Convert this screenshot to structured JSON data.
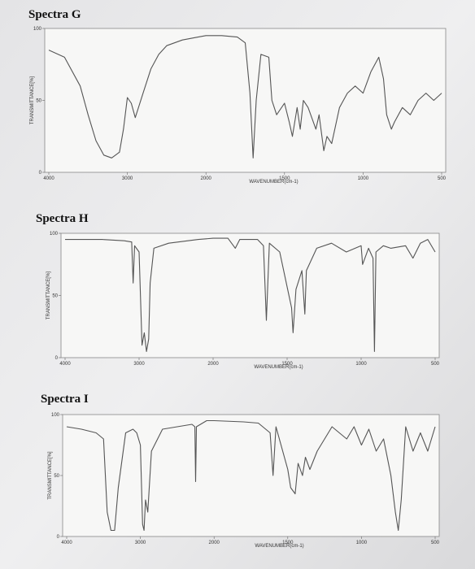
{
  "chart_data": [
    {
      "type": "line",
      "title": "Spectra G",
      "xlabel": "WAVENUMBER(cm-1)",
      "ylabel": "TRANSMITTANCE[%]",
      "xlim": [
        4000,
        500
      ],
      "xticks": [
        4000,
        3000,
        2000,
        1500,
        1000,
        500
      ],
      "ylim": [
        0,
        100
      ],
      "yticks": [
        0,
        50,
        100
      ],
      "series": [
        {
          "name": "Spectra G",
          "color": "#555555",
          "x": [
            4000,
            3800,
            3600,
            3500,
            3400,
            3300,
            3200,
            3100,
            3050,
            3000,
            2950,
            2900,
            2800,
            2700,
            2600,
            2500,
            2300,
            2100,
            2000,
            1900,
            1800,
            1750,
            1720,
            1700,
            1680,
            1650,
            1600,
            1580,
            1550,
            1500,
            1470,
            1450,
            1420,
            1400,
            1380,
            1350,
            1300,
            1280,
            1250,
            1230,
            1200,
            1150,
            1100,
            1050,
            1000,
            950,
            900,
            870,
            850,
            820,
            800,
            750,
            700,
            650,
            600,
            550,
            500
          ],
          "values": [
            85,
            80,
            60,
            40,
            22,
            12,
            10,
            14,
            30,
            52,
            48,
            38,
            55,
            72,
            82,
            88,
            92,
            94,
            95,
            95,
            94,
            90,
            55,
            10,
            50,
            82,
            80,
            50,
            40,
            48,
            35,
            25,
            45,
            30,
            50,
            45,
            30,
            40,
            15,
            25,
            20,
            45,
            55,
            60,
            55,
            70,
            80,
            65,
            40,
            30,
            35,
            45,
            40,
            50,
            55,
            50,
            55
          ]
        }
      ]
    },
    {
      "type": "line",
      "title": "Spectra H",
      "xlabel": "WAVENUMBER(cm-1)",
      "ylabel": "TRANSMITTANCE[%]",
      "xlim": [
        4000,
        500
      ],
      "xticks": [
        4000,
        3000,
        2000,
        1500,
        1000,
        500
      ],
      "ylim": [
        0,
        100
      ],
      "yticks": [
        0,
        50,
        100
      ],
      "series": [
        {
          "name": "Spectra H",
          "color": "#555555",
          "x": [
            4000,
            3500,
            3200,
            3100,
            3080,
            3060,
            3000,
            2960,
            2930,
            2900,
            2870,
            2850,
            2800,
            2600,
            2200,
            2000,
            1900,
            1850,
            1820,
            1700,
            1660,
            1640,
            1620,
            1550,
            1470,
            1460,
            1440,
            1400,
            1380,
            1370,
            1300,
            1200,
            1100,
            1000,
            990,
            950,
            920,
            910,
            900,
            850,
            800,
            700,
            650,
            600,
            550,
            500
          ],
          "values": [
            95,
            95,
            94,
            93,
            60,
            90,
            85,
            10,
            20,
            5,
            15,
            60,
            88,
            92,
            95,
            96,
            96,
            88,
            95,
            95,
            90,
            30,
            92,
            85,
            40,
            20,
            55,
            70,
            35,
            70,
            88,
            92,
            85,
            90,
            75,
            88,
            80,
            5,
            85,
            90,
            88,
            90,
            80,
            92,
            95,
            85
          ]
        }
      ]
    },
    {
      "type": "line",
      "title": "Spectra I",
      "xlabel": "WAVENUMBER(cm-1)",
      "ylabel": "TRANSMITTANCE[%]",
      "xlim": [
        4000,
        500
      ],
      "xticks": [
        4000,
        3000,
        2000,
        1500,
        1000,
        500
      ],
      "ylim": [
        0,
        100
      ],
      "yticks": [
        0,
        50,
        100
      ],
      "series": [
        {
          "name": "Spectra I",
          "color": "#555555",
          "x": [
            4000,
            3800,
            3600,
            3500,
            3450,
            3400,
            3350,
            3300,
            3200,
            3100,
            3050,
            3000,
            2970,
            2950,
            2930,
            2900,
            2850,
            2700,
            2500,
            2300,
            2260,
            2250,
            2240,
            2100,
            2000,
            1800,
            1700,
            1620,
            1600,
            1580,
            1500,
            1480,
            1450,
            1430,
            1400,
            1380,
            1350,
            1300,
            1250,
            1200,
            1150,
            1100,
            1050,
            1000,
            950,
            900,
            850,
            800,
            770,
            750,
            730,
            700,
            650,
            600,
            550,
            500
          ],
          "values": [
            90,
            88,
            85,
            80,
            20,
            5,
            5,
            40,
            85,
            88,
            85,
            75,
            10,
            5,
            30,
            20,
            70,
            88,
            90,
            92,
            90,
            45,
            90,
            95,
            95,
            94,
            93,
            85,
            50,
            90,
            55,
            40,
            35,
            60,
            50,
            65,
            55,
            70,
            80,
            90,
            85,
            80,
            90,
            75,
            88,
            70,
            80,
            50,
            20,
            5,
            30,
            90,
            70,
            85,
            70,
            90
          ]
        }
      ]
    }
  ]
}
